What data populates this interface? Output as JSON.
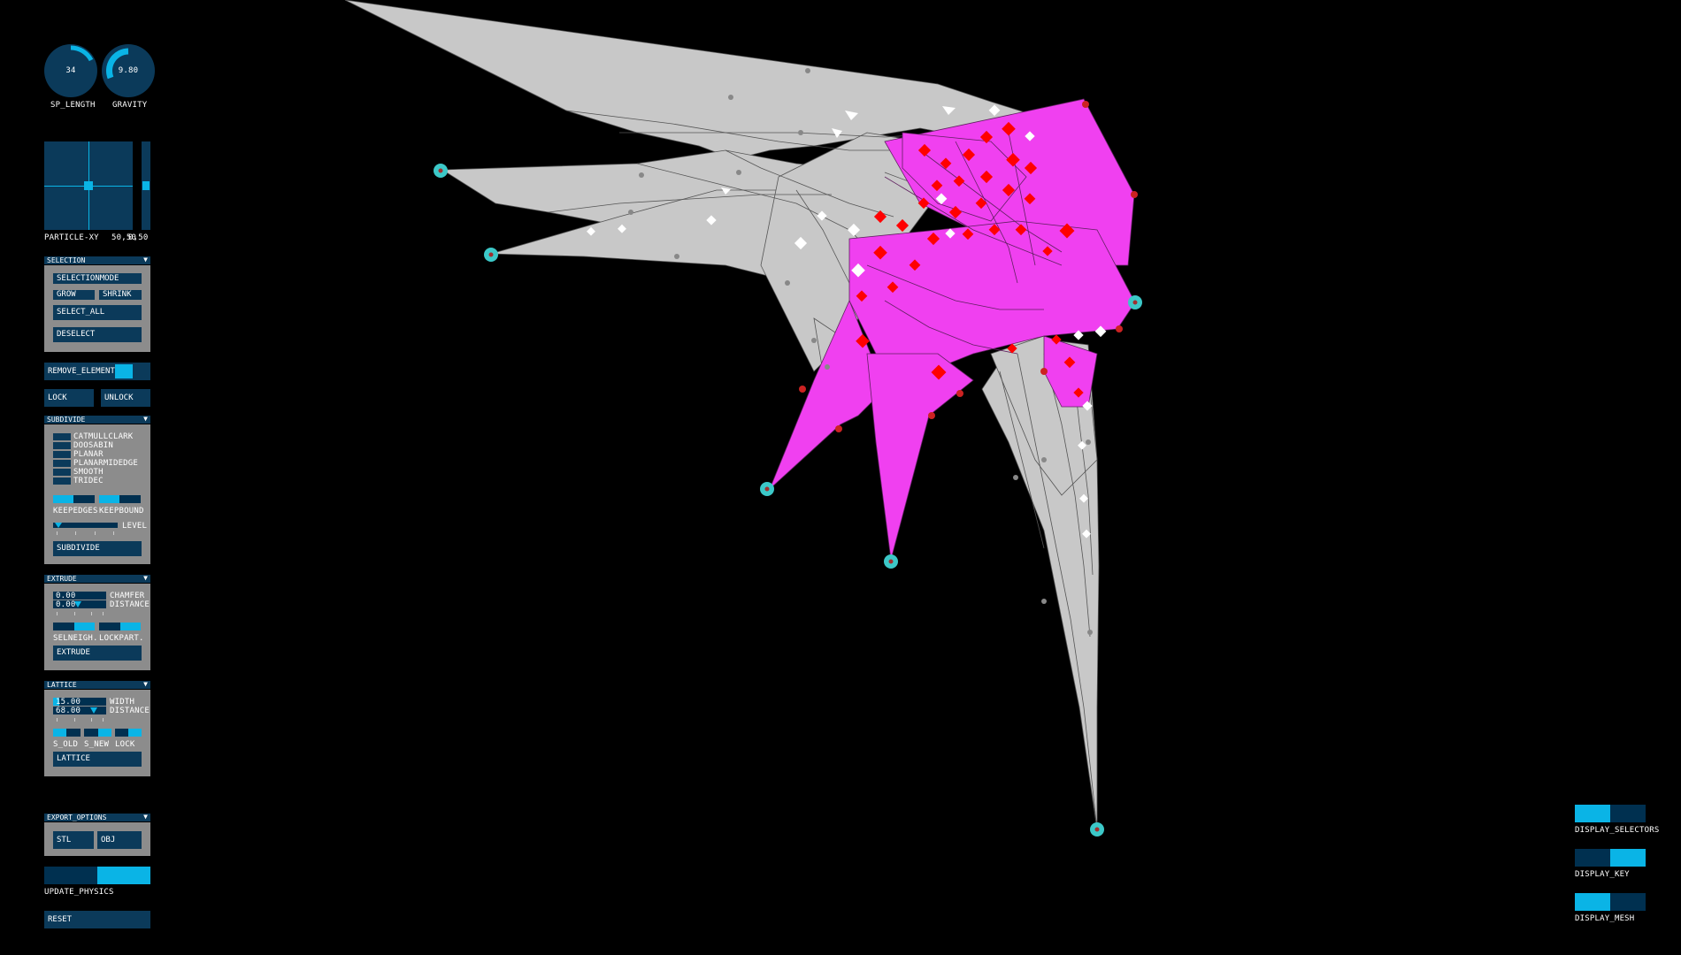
{
  "knobs": [
    {
      "label": "SP_LENGTH",
      "value": "34",
      "level": 0.34
    },
    {
      "label": "GRAVITY",
      "value": "9.80",
      "level": 0.8
    }
  ],
  "particle_xy": {
    "label": "PARTICLE-XY",
    "value": "50,50",
    "value2": "0,50"
  },
  "selection": {
    "header": "SELECTION",
    "mode_label": "SELECTIONMODE",
    "grow_label": "GROW",
    "shrink_label": "SHRINK",
    "select_all_label": "SELECT_ALL",
    "deselect_label": "DESELECT"
  },
  "remove_element": {
    "label": "REMOVE_ELEMENT"
  },
  "lock_label": "LOCK",
  "unlock_label": "UNLOCK",
  "subdivide": {
    "header": "SUBDIVIDE",
    "options": [
      "CATMULLCLARK",
      "DOOSABIN",
      "PLANAR",
      "PLANARMIDEDGE",
      "SMOOTH",
      "TRIDEC"
    ],
    "keepedges_label": "KEEPEDGES",
    "keepbound_label": "KEEPBOUND",
    "level_label": "LEVEL",
    "button_label": "SUBDIVIDE"
  },
  "extrude": {
    "header": "EXTRUDE",
    "chamfer_value": "0.00",
    "chamfer_label": "CHAMFER",
    "distance_value": "0.00",
    "distance_label": "DISTANCE",
    "selneigh_label": "SELNEIGH.",
    "lockpart_label": "LOCKPART.",
    "button_label": "EXTRUDE"
  },
  "lattice": {
    "header": "LATTICE",
    "width_value": "15.00",
    "width_label": "WIDTH",
    "distance_value": "68.00",
    "distance_label": "DISTANCE",
    "s_old_label": "S_OLD",
    "s_new_label": "S_NEW",
    "lock_label": "LOCK",
    "button_label": "LATTICE"
  },
  "export_options": {
    "header": "EXPORT_OPTIONS",
    "stl_label": "STL",
    "obj_label": "OBJ"
  },
  "update_physics_label": "UPDATE_PHYSICS",
  "reset_label": "RESET",
  "display": {
    "selectors_label": "DISPLAY_SELECTORS",
    "key_label": "DISPLAY_KEY",
    "mesh_label": "DISPLAY_MESH"
  },
  "colors": {
    "mesh_grey": "#c8c8c8",
    "mesh_magenta": "#f040f0",
    "selected_red": "#ff0000",
    "anchor_cyan": "#3cc8c8",
    "ui_dark": "#0b3a5a",
    "ui_active": "#0ab4e6"
  }
}
